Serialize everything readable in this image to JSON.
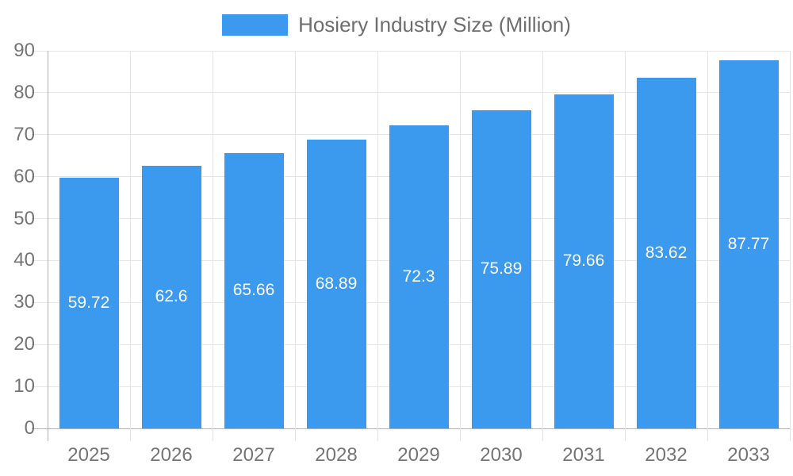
{
  "legend": {
    "label": "Hosiery Industry Size (Million)"
  },
  "chart_data": {
    "type": "bar",
    "title": "Hosiery Industry Size (Million)",
    "series_name": "Hosiery Industry Size (Million)",
    "categories": [
      "2025",
      "2026",
      "2027",
      "2028",
      "2029",
      "2030",
      "2031",
      "2032",
      "2033"
    ],
    "values": [
      59.72,
      62.6,
      65.66,
      68.89,
      72.3,
      75.89,
      79.66,
      83.62,
      87.77
    ],
    "value_labels": [
      "59.72",
      "62.6",
      "65.66",
      "68.89",
      "72.3",
      "75.89",
      "79.66",
      "83.62",
      "87.77"
    ],
    "xlabel": "",
    "ylabel": "",
    "ylim": [
      0,
      90
    ],
    "yticks": [
      0,
      10,
      20,
      30,
      40,
      50,
      60,
      70,
      80,
      90
    ],
    "grid": true,
    "legend_position": "top",
    "colors": {
      "bar": "#3B99EE",
      "value_label_text": "#FFFFFF",
      "axis_text": "#757575",
      "legend_text": "#6E6E6E",
      "gridline": "#E6E6E6",
      "axis_line": "#B2B2B2",
      "background": "#FFFFFF"
    }
  }
}
